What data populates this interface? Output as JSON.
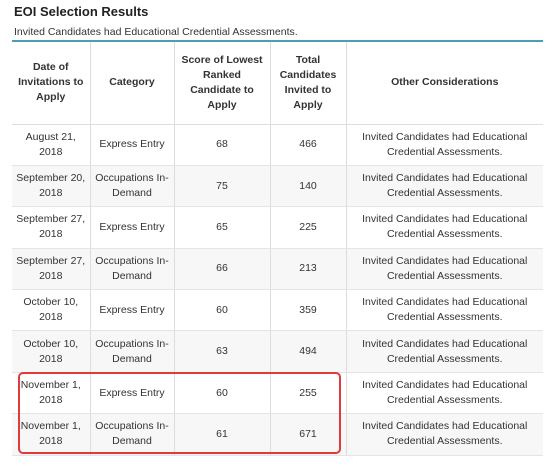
{
  "title": "EOI Selection Results",
  "caption": "Invited Candidates had Educational Credential Assessments.",
  "highlight_color": "#e23a3a",
  "accent_color": "#4a9fb0",
  "table": {
    "headers": [
      "Date of Invitations to Apply",
      "Category",
      "Score of Lowest Ranked Candidate to Apply",
      "Total Candidates Invited to Apply",
      "Other Considerations"
    ],
    "rows": [
      [
        "August 21, 2018",
        "Express Entry",
        "68",
        "466",
        "Invited Candidates had Educational Credential Assessments."
      ],
      [
        "September 20, 2018",
        "Occupations In-Demand",
        "75",
        "140",
        "Invited Candidates had Educational Credential Assessments."
      ],
      [
        "September 27, 2018",
        "Express Entry",
        "65",
        "225",
        "Invited Candidates had Educational Credential Assessments."
      ],
      [
        "September 27, 2018",
        "Occupations In-Demand",
        "66",
        "213",
        "Invited Candidates had Educational Credential Assessments."
      ],
      [
        "October 10, 2018",
        "Express Entry",
        "60",
        "359",
        "Invited Candidates had Educational Credential Assessments."
      ],
      [
        "October 10, 2018",
        "Occupations In-Demand",
        "63",
        "494",
        "Invited Candidates had Educational Credential Assessments."
      ],
      [
        "November 1, 2018",
        "Express Entry",
        "60",
        "255",
        "Invited Candidates had Educational Credential Assessments."
      ],
      [
        "November 1, 2018",
        "Occupations In-Demand",
        "61",
        "671",
        "Invited Candidates had Educational Credential Assessments."
      ]
    ]
  }
}
